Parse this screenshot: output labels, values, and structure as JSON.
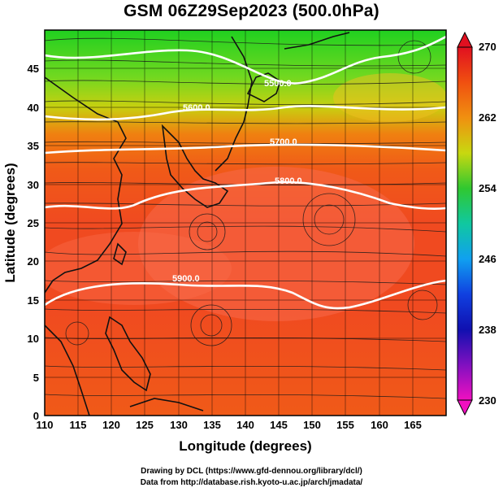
{
  "title": "GSM 06Z29Sep2023 (500.0hPa)",
  "credits": {
    "line1": "Drawing by DCL (https://www.gfd-dennou.org/library/dcl/)",
    "line2": "Data from http://database.rish.kyoto-u.ac.jp/arch/jmadata/"
  },
  "axes": {
    "xlabel": "Longitude (degrees)",
    "ylabel": "Latitude  (degrees)",
    "xticks": [
      "110",
      "115",
      "120",
      "125",
      "130",
      "135",
      "140",
      "145",
      "150",
      "155",
      "160",
      "165"
    ],
    "yticks": [
      "0",
      "5",
      "10",
      "15",
      "20",
      "25",
      "30",
      "35",
      "40",
      "45"
    ]
  },
  "colorbar": {
    "labels": [
      "270",
      "262",
      "254",
      "246",
      "238",
      "230"
    ],
    "colors": [
      "#e11020",
      "#f05010",
      "#f09010",
      "#c8d810",
      "#30c830",
      "#10c8a0",
      "#10a0f0",
      "#1040e0",
      "#1010b0",
      "#8010c0",
      "#f010c0"
    ]
  },
  "contours": [
    {
      "label": "5900.0"
    },
    {
      "label": "5800.0"
    },
    {
      "label": "5700.0"
    },
    {
      "label": "5600.0"
    },
    {
      "label": "5500.0"
    }
  ],
  "chart_data": {
    "type": "heatmap",
    "title": "GSM 06Z29Sep2023 (500.0hPa)",
    "xlabel": "Longitude (degrees)",
    "ylabel": "Latitude  (degrees)",
    "xlim": [
      110,
      170
    ],
    "ylim": [
      0,
      50
    ],
    "colorbar_range": [
      230,
      270
    ],
    "colorbar_ticks": [
      230,
      238,
      246,
      254,
      262,
      270
    ],
    "contour_levels": [
      5500,
      5600,
      5700,
      5800,
      5900
    ],
    "grid": true
  }
}
